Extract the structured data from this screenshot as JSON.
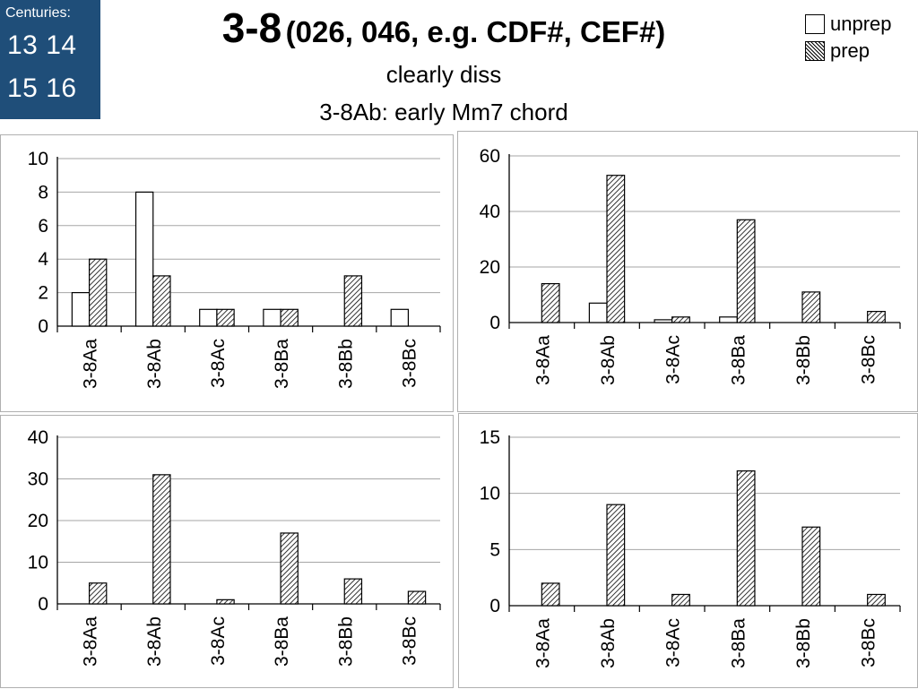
{
  "centuries": {
    "label": "Centuries:",
    "row1": "13 14",
    "row2": "15 16"
  },
  "title": {
    "main": "3-8",
    "rest": "(026, 046, e.g. CDF#, CEF#)",
    "subtitle1": "clearly diss",
    "subtitle2": "3-8Ab: early Mm7 chord"
  },
  "legend": {
    "unprep": "unprep",
    "prep": "prep"
  },
  "colors": {
    "century_box": "#1f4e79",
    "bar_outline": "#000000",
    "grid": "#a6a6a6"
  },
  "chart_data": [
    {
      "type": "bar",
      "categories": [
        "3-8Aa",
        "3-8Ab",
        "3-8Ac",
        "3-8Ba",
        "3-8Bb",
        "3-8Bc"
      ],
      "series": [
        {
          "name": "unprep",
          "values": [
            2,
            8,
            1,
            1,
            0,
            1
          ]
        },
        {
          "name": "prep",
          "values": [
            4,
            3,
            1,
            1,
            3,
            0
          ]
        }
      ],
      "yticks": [
        0,
        2,
        4,
        6,
        8,
        10
      ],
      "ylim": [
        0,
        10
      ],
      "grid": true
    },
    {
      "type": "bar",
      "categories": [
        "3-8Aa",
        "3-8Ab",
        "3-8Ac",
        "3-8Ba",
        "3-8Bb",
        "3-8Bc"
      ],
      "series": [
        {
          "name": "unprep",
          "values": [
            0,
            7,
            1,
            2,
            0,
            0
          ]
        },
        {
          "name": "prep",
          "values": [
            14,
            53,
            2,
            37,
            11,
            4
          ]
        }
      ],
      "yticks": [
        0,
        20,
        40,
        60
      ],
      "ylim": [
        0,
        60
      ],
      "grid": true
    },
    {
      "type": "bar",
      "categories": [
        "3-8Aa",
        "3-8Ab",
        "3-8Ac",
        "3-8Ba",
        "3-8Bb",
        "3-8Bc"
      ],
      "series": [
        {
          "name": "unprep",
          "values": [
            0,
            0,
            0,
            0,
            0,
            0
          ]
        },
        {
          "name": "prep",
          "values": [
            5,
            31,
            1,
            17,
            6,
            3
          ]
        }
      ],
      "yticks": [
        0,
        10,
        20,
        30,
        40
      ],
      "ylim": [
        0,
        40
      ],
      "grid": true
    },
    {
      "type": "bar",
      "categories": [
        "3-8Aa",
        "3-8Ab",
        "3-8Ac",
        "3-8Ba",
        "3-8Bb",
        "3-8Bc"
      ],
      "series": [
        {
          "name": "unprep",
          "values": [
            0,
            0,
            0,
            0,
            0,
            0
          ]
        },
        {
          "name": "prep",
          "values": [
            2,
            9,
            1,
            12,
            7,
            1
          ]
        }
      ],
      "yticks": [
        0,
        5,
        10,
        15
      ],
      "ylim": [
        0,
        15
      ],
      "grid": true
    }
  ]
}
